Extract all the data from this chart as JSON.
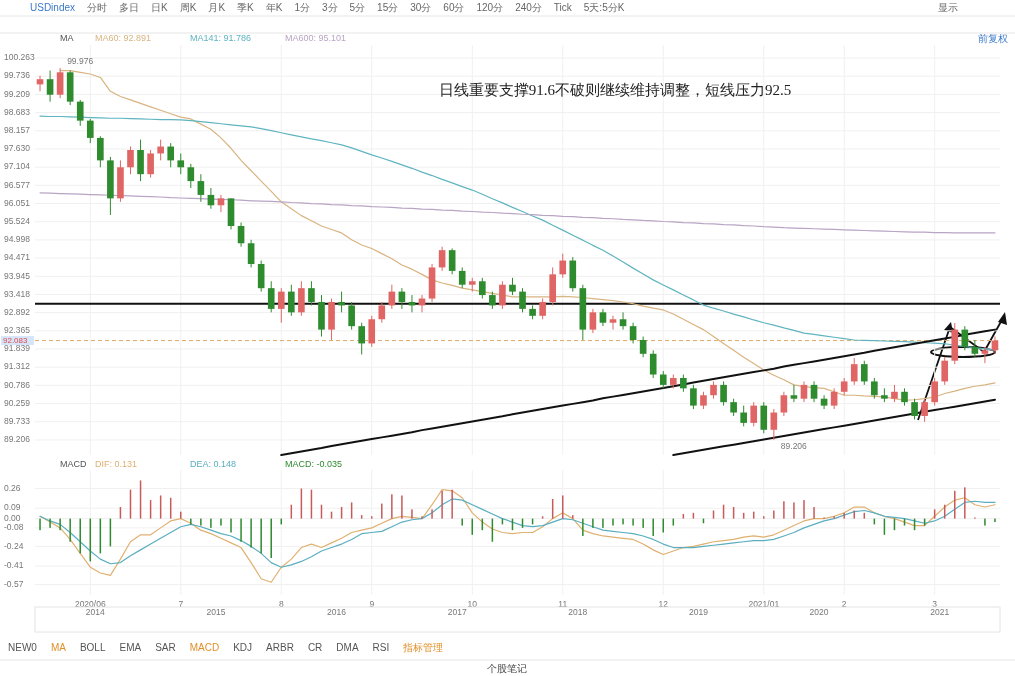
{
  "chart_data": [
    {
      "type": "candlestick",
      "categories": [
        null,
        null,
        null,
        null,
        null,
        "2020/06",
        null,
        null,
        null,
        null,
        null,
        null,
        null,
        null,
        "7",
        null,
        null,
        null,
        null,
        null,
        null,
        null,
        null,
        null,
        "8",
        null,
        null,
        null,
        null,
        null,
        null,
        null,
        null,
        "9",
        null,
        null,
        null,
        null,
        null,
        null,
        null,
        null,
        null,
        "10",
        null,
        null,
        null,
        null,
        null,
        null,
        null,
        null,
        "11",
        null,
        null,
        null,
        null,
        null,
        null,
        null,
        null,
        null,
        "12",
        null,
        null,
        null,
        null,
        null,
        null,
        null,
        null,
        null,
        "2021/01",
        null,
        null,
        null,
        null,
        null,
        null,
        null,
        "2",
        null,
        null,
        null,
        null,
        null,
        null,
        null,
        null,
        "3",
        null,
        null,
        null,
        null,
        null,
        null
      ],
      "ohlc": [
        [
          99.5,
          99.75,
          99.3,
          99.65
        ],
        [
          99.65,
          99.9,
          99.0,
          99.2
        ],
        [
          99.2,
          99.976,
          99.1,
          99.85
        ],
        [
          99.85,
          99.9,
          98.9,
          99.0
        ],
        [
          99.0,
          99.05,
          98.3,
          98.45
        ],
        [
          98.45,
          98.5,
          97.8,
          97.95
        ],
        [
          97.95,
          98.0,
          97.1,
          97.3
        ],
        [
          97.3,
          97.4,
          95.72,
          96.2
        ],
        [
          96.2,
          97.3,
          96.1,
          97.1
        ],
        [
          97.1,
          97.7,
          96.9,
          97.6
        ],
        [
          97.6,
          97.9,
          96.7,
          96.9
        ],
        [
          96.9,
          97.6,
          96.8,
          97.5
        ],
        [
          97.5,
          97.9,
          97.3,
          97.7
        ],
        [
          97.7,
          97.8,
          97.1,
          97.3
        ],
        [
          97.3,
          97.5,
          96.9,
          97.1
        ],
        [
          97.1,
          97.2,
          96.5,
          96.7
        ],
        [
          96.7,
          96.9,
          96.1,
          96.3
        ],
        [
          96.3,
          96.5,
          95.9,
          96.0
        ],
        [
          96.0,
          96.3,
          95.8,
          96.2
        ],
        [
          96.2,
          96.2,
          95.3,
          95.4
        ],
        [
          95.4,
          95.5,
          94.8,
          94.9
        ],
        [
          94.9,
          95.0,
          94.2,
          94.3
        ],
        [
          94.3,
          94.4,
          93.5,
          93.6
        ],
        [
          93.6,
          93.8,
          92.9,
          93.0
        ],
        [
          93.0,
          93.6,
          92.6,
          93.5
        ],
        [
          93.5,
          93.7,
          92.8,
          92.9
        ],
        [
          92.9,
          93.8,
          92.8,
          93.6
        ],
        [
          93.6,
          93.8,
          93.1,
          93.2
        ],
        [
          93.2,
          93.4,
          92.2,
          92.4
        ],
        [
          92.4,
          93.3,
          92.1,
          93.2
        ],
        [
          93.2,
          93.5,
          92.9,
          93.1
        ],
        [
          93.1,
          93.2,
          92.4,
          92.5
        ],
        [
          92.5,
          92.6,
          91.68,
          92.0
        ],
        [
          92.0,
          92.8,
          91.9,
          92.7
        ],
        [
          92.7,
          93.2,
          92.6,
          93.1
        ],
        [
          93.1,
          93.7,
          93.0,
          93.5
        ],
        [
          93.5,
          93.6,
          93.0,
          93.2
        ],
        [
          93.2,
          93.4,
          92.9,
          93.1
        ],
        [
          93.1,
          93.4,
          92.9,
          93.3
        ],
        [
          93.3,
          94.3,
          93.2,
          94.2
        ],
        [
          94.2,
          94.8,
          94.1,
          94.7
        ],
        [
          94.7,
          94.75,
          94.0,
          94.1
        ],
        [
          94.1,
          94.2,
          93.6,
          93.7
        ],
        [
          93.7,
          93.9,
          93.5,
          93.8
        ],
        [
          93.8,
          93.9,
          93.3,
          93.4
        ],
        [
          93.4,
          93.5,
          93.0,
          93.1
        ],
        [
          93.1,
          93.8,
          93.0,
          93.7
        ],
        [
          93.7,
          93.9,
          93.4,
          93.5
        ],
        [
          93.5,
          93.6,
          92.9,
          93.0
        ],
        [
          93.0,
          93.1,
          92.7,
          92.8
        ],
        [
          92.8,
          93.3,
          92.7,
          93.2
        ],
        [
          93.2,
          94.2,
          93.1,
          94.0
        ],
        [
          94.0,
          94.6,
          93.9,
          94.4
        ],
        [
          94.4,
          94.5,
          93.5,
          93.6
        ],
        [
          93.6,
          93.7,
          92.1,
          92.4
        ],
        [
          92.4,
          93.0,
          92.3,
          92.9
        ],
        [
          92.9,
          93.0,
          92.5,
          92.6
        ],
        [
          92.6,
          92.8,
          92.4,
          92.7
        ],
        [
          92.7,
          92.9,
          92.4,
          92.5
        ],
        [
          92.5,
          92.6,
          92.0,
          92.1
        ],
        [
          92.1,
          92.2,
          91.6,
          91.7
        ],
        [
          91.7,
          91.8,
          91.0,
          91.1
        ],
        [
          91.1,
          91.2,
          90.7,
          90.8
        ],
        [
          90.8,
          91.1,
          90.7,
          91.0
        ],
        [
          91.0,
          91.1,
          90.6,
          90.7
        ],
        [
          90.7,
          90.8,
          90.1,
          90.2
        ],
        [
          90.2,
          90.6,
          90.1,
          90.5
        ],
        [
          90.5,
          90.9,
          90.4,
          90.8
        ],
        [
          90.8,
          90.9,
          90.2,
          90.3
        ],
        [
          90.3,
          90.4,
          89.9,
          90.0
        ],
        [
          90.0,
          90.2,
          89.6,
          89.7
        ],
        [
          89.7,
          90.3,
          89.6,
          90.2
        ],
        [
          90.2,
          90.3,
          89.4,
          89.5
        ],
        [
          89.5,
          90.1,
          89.206,
          90.0
        ],
        [
          90.0,
          90.6,
          89.9,
          90.5
        ],
        [
          90.5,
          90.8,
          90.3,
          90.4
        ],
        [
          90.4,
          90.9,
          90.3,
          90.8
        ],
        [
          90.8,
          90.9,
          90.3,
          90.4
        ],
        [
          90.4,
          90.5,
          90.1,
          90.2
        ],
        [
          90.2,
          90.7,
          90.1,
          90.6
        ],
        [
          90.6,
          91.0,
          90.5,
          90.9
        ],
        [
          90.9,
          91.58,
          90.8,
          91.4
        ],
        [
          91.4,
          91.5,
          90.8,
          90.9
        ],
        [
          90.9,
          91.0,
          90.4,
          90.5
        ],
        [
          90.5,
          90.7,
          90.3,
          90.4
        ],
        [
          90.4,
          90.8,
          90.3,
          90.6
        ],
        [
          90.6,
          90.7,
          90.2,
          90.3
        ],
        [
          90.3,
          90.4,
          89.8,
          89.9
        ],
        [
          89.9,
          90.4,
          89.73,
          90.3
        ],
        [
          90.3,
          91.0,
          90.2,
          90.9
        ],
        [
          90.9,
          91.6,
          90.8,
          91.5
        ],
        [
          91.5,
          92.59,
          91.4,
          92.4
        ],
        [
          92.4,
          92.5,
          91.8,
          91.9
        ],
        [
          91.9,
          92.1,
          91.6,
          91.7
        ],
        [
          91.7,
          91.9,
          91.43,
          91.8
        ],
        [
          91.8,
          92.2,
          91.7,
          92.083
        ]
      ],
      "colors": [
        "#e06666",
        "#2e8b2e",
        "#e06666",
        "#2e8b2e",
        "#2e8b2e",
        "#2e8b2e",
        "#2e8b2e",
        "#2e8b2e",
        "#e06666",
        "#e06666",
        "#2e8b2e",
        "#e06666",
        "#e06666",
        "#2e8b2e",
        "#2e8b2e",
        "#2e8b2e",
        "#2e8b2e",
        "#2e8b2e",
        "#e06666",
        "#2e8b2e",
        "#2e8b2e",
        "#2e8b2e",
        "#2e8b2e",
        "#2e8b2e",
        "#e06666",
        "#2e8b2e",
        "#e06666",
        "#2e8b2e",
        "#2e8b2e",
        "#e06666",
        "#2e8b2e",
        "#2e8b2e",
        "#2e8b2e",
        "#e06666",
        "#e06666",
        "#e06666",
        "#2e8b2e",
        "#2e8b2e",
        "#e06666",
        "#e06666",
        "#e06666",
        "#2e8b2e",
        "#2e8b2e",
        "#e06666",
        "#2e8b2e",
        "#2e8b2e",
        "#e06666",
        "#2e8b2e",
        "#2e8b2e",
        "#2e8b2e",
        "#e06666",
        "#e06666",
        "#e06666",
        "#2e8b2e",
        "#2e8b2e",
        "#e06666",
        "#2e8b2e",
        "#e06666",
        "#2e8b2e",
        "#2e8b2e",
        "#2e8b2e",
        "#2e8b2e",
        "#2e8b2e",
        "#e06666",
        "#2e8b2e",
        "#2e8b2e",
        "#e06666",
        "#e06666",
        "#2e8b2e",
        "#2e8b2e",
        "#2e8b2e",
        "#e06666",
        "#2e8b2e",
        "#e06666",
        "#e06666",
        "#2e8b2e",
        "#e06666",
        "#2e8b2e",
        "#2e8b2e",
        "#e06666",
        "#e06666",
        "#e06666",
        "#2e8b2e",
        "#2e8b2e",
        "#2e8b2e",
        "#e06666",
        "#2e8b2e",
        "#2e8b2e",
        "#e06666",
        "#e06666",
        "#e06666",
        "#e06666",
        "#2e8b2e",
        "#2e8b2e",
        "#e06666",
        "#e06666"
      ],
      "series": [
        {
          "name": "MA60: 92.891",
          "type": "line",
          "color": "#d8b480",
          "values": [
            null,
            null,
            99.9,
            99.9,
            99.85,
            99.8,
            99.7,
            99.3,
            99.15,
            99.05,
            98.95,
            98.85,
            98.75,
            98.65,
            98.55,
            98.5,
            98.35,
            98.2,
            97.95,
            97.65,
            97.3,
            97.0,
            96.7,
            96.4,
            96.1,
            95.9,
            95.7,
            95.55,
            95.4,
            95.3,
            95.2,
            95.0,
            94.85,
            94.75,
            94.6,
            94.45,
            94.27,
            94.15,
            94.0,
            93.84,
            93.75,
            93.68,
            93.6,
            93.55,
            93.5,
            93.45,
            93.4,
            93.35,
            93.35,
            93.35,
            93.35,
            93.35,
            93.36,
            93.35,
            93.33,
            93.3,
            93.27,
            93.24,
            93.2,
            93.15,
            93.08,
            93.02,
            92.97,
            92.85,
            92.7,
            92.55,
            92.4,
            92.2,
            92.0,
            91.8,
            91.6,
            91.42,
            91.23,
            91.08,
            90.95,
            90.8,
            90.75,
            90.72,
            90.7,
            90.6,
            90.5,
            90.5,
            90.48,
            90.47,
            90.45,
            90.4,
            90.36,
            90.37,
            90.4,
            90.45,
            90.55,
            90.62,
            90.7,
            90.76,
            90.8,
            90.86
          ]
        },
        {
          "name": "MA141: 91.786",
          "type": "line",
          "color": "#5fb4c0",
          "values": [
            98.58,
            98.57,
            98.57,
            98.56,
            98.55,
            98.54,
            98.53,
            98.52,
            98.52,
            98.51,
            98.5,
            98.49,
            98.48,
            98.48,
            98.47,
            98.45,
            98.42,
            98.39,
            98.36,
            98.33,
            98.3,
            98.27,
            98.22,
            98.16,
            98.1,
            98.04,
            97.98,
            97.92,
            97.87,
            97.81,
            97.75,
            97.66,
            97.56,
            97.46,
            97.37,
            97.27,
            97.17,
            97.07,
            96.96,
            96.86,
            96.75,
            96.65,
            96.54,
            96.44,
            96.32,
            96.19,
            96.07,
            95.94,
            95.82,
            95.69,
            95.57,
            95.42,
            95.28,
            95.13,
            94.99,
            94.84,
            94.7,
            94.53,
            94.36,
            94.18,
            94.01,
            93.84,
            93.69,
            93.55,
            93.4,
            93.26,
            93.11,
            93.02,
            92.94,
            92.85,
            92.77,
            92.68,
            92.6,
            92.53,
            92.45,
            92.38,
            92.3,
            92.26,
            92.22,
            92.18,
            92.14,
            92.1,
            92.09,
            92.08,
            92.07,
            92.06,
            92.05,
            92.04,
            92.02,
            92.01,
            91.99,
            91.95,
            91.91,
            91.88,
            91.84,
            91.8
          ]
        },
        {
          "name": "MA600: 95.101",
          "type": "line",
          "color": "#b8a4c4",
          "values": [
            96.36,
            96.35,
            96.34,
            96.33,
            96.32,
            96.31,
            96.3,
            96.29,
            96.28,
            96.27,
            96.26,
            96.25,
            96.24,
            96.22,
            96.21,
            96.2,
            96.19,
            96.18,
            96.17,
            96.16,
            96.15,
            96.13,
            96.12,
            96.11,
            96.1,
            96.08,
            96.07,
            96.05,
            96.04,
            96.02,
            96.01,
            95.99,
            95.98,
            95.96,
            95.95,
            95.94,
            95.92,
            95.91,
            95.89,
            95.88,
            95.86,
            95.85,
            95.83,
            95.82,
            95.8,
            95.79,
            95.77,
            95.76,
            95.74,
            95.73,
            95.71,
            95.7,
            95.68,
            95.67,
            95.65,
            95.64,
            95.62,
            95.61,
            95.59,
            95.58,
            95.56,
            95.55,
            95.53,
            95.52,
            95.5,
            95.49,
            95.47,
            95.46,
            95.44,
            95.43,
            95.41,
            95.4,
            95.38,
            95.37,
            95.35,
            95.34,
            95.33,
            95.32,
            95.31,
            95.3,
            95.29,
            95.28,
            95.27,
            95.26,
            95.25,
            95.24,
            95.23,
            95.22,
            95.22,
            95.21,
            95.21,
            95.2,
            95.2,
            95.2,
            95.2,
            95.2
          ]
        },
        {
          "type": "line",
          "color": "#111111",
          "line_style": "solid",
          "values": [
            null,
            null,
            null,
            null,
            null,
            null,
            null,
            null,
            null,
            null,
            null,
            null,
            null,
            null,
            null,
            null,
            null,
            null,
            null,
            null,
            null,
            null,
            null,
            null,
            88.77,
            88.82,
            88.87,
            88.92,
            88.97,
            89.03,
            89.08,
            89.13,
            89.18,
            89.23,
            89.28,
            89.33,
            89.38,
            89.43,
            89.49,
            89.54,
            89.59,
            89.64,
            89.69,
            89.74,
            89.79,
            89.84,
            89.89,
            89.95,
            90.0,
            90.05,
            90.1,
            90.15,
            90.2,
            90.25,
            90.3,
            90.35,
            90.41,
            90.46,
            90.51,
            90.56,
            90.61,
            90.66,
            90.71,
            90.76,
            90.81,
            90.87,
            90.92,
            90.97,
            91.02,
            91.07,
            91.12,
            91.17,
            91.22,
            91.27,
            91.33,
            91.38,
            91.43,
            91.48,
            91.53,
            91.58,
            91.63,
            91.68,
            91.73,
            91.79,
            91.84,
            91.89,
            91.94,
            91.99,
            92.04,
            92.09,
            92.14,
            92.19,
            92.25,
            92.3,
            92.35,
            92.4
          ]
        },
        {
          "type": "line",
          "color": "#111111",
          "line_style": "solid",
          "values": [
            null,
            null,
            null,
            null,
            null,
            null,
            null,
            null,
            null,
            null,
            null,
            null,
            null,
            null,
            null,
            null,
            null,
            null,
            null,
            null,
            null,
            null,
            null,
            null,
            null,
            null,
            null,
            null,
            null,
            null,
            null,
            null,
            null,
            null,
            null,
            null,
            null,
            null,
            null,
            null,
            null,
            null,
            null,
            null,
            null,
            null,
            null,
            null,
            null,
            null,
            null,
            null,
            null,
            null,
            null,
            null,
            null,
            null,
            null,
            null,
            null,
            null,
            null,
            88.77,
            88.82,
            88.87,
            88.92,
            88.97,
            89.02,
            89.07,
            89.12,
            89.17,
            89.22,
            89.27,
            89.32,
            89.37,
            89.42,
            89.47,
            89.52,
            89.57,
            89.62,
            89.67,
            89.72,
            89.77,
            89.82,
            89.87,
            89.92,
            89.97,
            90.02,
            90.07,
            90.12,
            90.17,
            90.22,
            90.27,
            90.32,
            90.37
          ]
        }
      ],
      "ylim": [
        88.77,
        100.64
      ],
      "yticks": [
        89.206,
        89.733,
        90.259,
        90.786,
        91.312,
        91.839,
        92.365,
        92.892,
        93.418,
        93.945,
        94.471,
        94.998,
        95.524,
        96.051,
        96.577,
        97.104,
        {
          "value": 97.63,
          "label": "97.630"
        },
        98.157,
        98.683,
        99.209,
        99.736,
        100.263
      ],
      "tick_labels": "y",
      "grid": true,
      "legend": "top left",
      "ref_lines": [
        {
          "axis": "y",
          "value": 93.15,
          "color": "#111111",
          "line_style": "solid"
        },
        {
          "axis": "y",
          "value": 92.083,
          "label": "92.083",
          "color": "#e0a868",
          "line_style": "dashed"
        }
      ],
      "annotations": [
        "MA",
        "日线重要支撑91.6不破则继续维持调整，短线压力92.5",
        {
          "text": "99.976",
          "y": 99.976
        },
        {
          "text": "89.206",
          "y": 89.206
        },
        "前复权",
        "USDindex",
        "分时",
        "多日",
        "日K",
        "周K",
        "月K",
        "季K",
        "年K",
        "1分",
        "3分",
        "5分",
        "15分",
        "30分",
        "60分",
        "120分",
        "240分",
        "Tick",
        "5天:5分K",
        "显示"
      ]
    },
    {
      "type": "bar",
      "categories": [
        null,
        null,
        null,
        null,
        null,
        "2020/06",
        null,
        null,
        null,
        null,
        null,
        null,
        null,
        null,
        "7",
        null,
        null,
        null,
        null,
        null,
        null,
        null,
        null,
        null,
        "8",
        null,
        null,
        null,
        null,
        null,
        null,
        null,
        null,
        "9",
        null,
        null,
        null,
        null,
        null,
        null,
        null,
        null,
        null,
        "10",
        null,
        null,
        null,
        null,
        null,
        null,
        null,
        null,
        "11",
        null,
        null,
        null,
        null,
        null,
        null,
        null,
        null,
        null,
        "12",
        null,
        null,
        null,
        null,
        null,
        null,
        null,
        null,
        null,
        "2021/01",
        null,
        null,
        null,
        null,
        null,
        null,
        null,
        "2",
        null,
        null,
        null,
        null,
        null,
        null,
        null,
        null,
        "3",
        null,
        null,
        null,
        null,
        null,
        null
      ],
      "series": [
        {
          "name": "DIF: 0.131",
          "type": "line",
          "color": "#e0b070",
          "values": [
            0.02,
            -0.03,
            -0.08,
            -0.18,
            -0.3,
            -0.42,
            -0.47,
            -0.49,
            -0.35,
            -0.2,
            -0.14,
            -0.14,
            -0.08,
            -0.02,
            0.0,
            -0.04,
            -0.1,
            -0.13,
            -0.17,
            -0.21,
            -0.25,
            -0.38,
            -0.52,
            -0.55,
            -0.42,
            -0.35,
            -0.25,
            -0.22,
            -0.25,
            -0.21,
            -0.17,
            -0.12,
            -0.1,
            -0.08,
            -0.04,
            0.0,
            0.02,
            0.01,
            0.0,
            0.12,
            0.25,
            0.24,
            0.18,
            0.05,
            -0.03,
            -0.09,
            -0.12,
            -0.13,
            -0.12,
            -0.12,
            -0.07,
            0.0,
            0.05,
            0.0,
            -0.1,
            -0.13,
            -0.15,
            -0.16,
            -0.17,
            -0.18,
            -0.22,
            -0.27,
            -0.31,
            -0.28,
            -0.25,
            -0.24,
            -0.22,
            -0.2,
            -0.19,
            -0.18,
            -0.16,
            -0.15,
            -0.16,
            -0.14,
            -0.1,
            -0.06,
            -0.02,
            0.0,
            0.0,
            0.02,
            0.05,
            0.1,
            0.1,
            0.05,
            0.02,
            0.0,
            -0.03,
            -0.06,
            -0.06,
            0.02,
            0.1,
            0.16,
            0.18,
            0.12,
            0.1,
            0.12
          ]
        },
        {
          "name": "DEA: 0.148",
          "type": "line",
          "color": "#5aaec0",
          "values": [
            0.02,
            -0.02,
            -0.05,
            -0.12,
            -0.2,
            -0.28,
            -0.35,
            -0.39,
            -0.38,
            -0.32,
            -0.27,
            -0.22,
            -0.17,
            -0.12,
            -0.07,
            -0.05,
            -0.07,
            -0.1,
            -0.13,
            -0.15,
            -0.19,
            -0.24,
            -0.3,
            -0.38,
            -0.42,
            -0.4,
            -0.37,
            -0.33,
            -0.28,
            -0.25,
            -0.22,
            -0.18,
            -0.13,
            -0.12,
            -0.11,
            -0.07,
            -0.03,
            -0.01,
            0.0,
            0.05,
            0.12,
            0.17,
            0.16,
            0.12,
            0.08,
            0.04,
            0.0,
            -0.03,
            -0.06,
            -0.07,
            -0.06,
            -0.03,
            0.0,
            -0.01,
            -0.04,
            -0.07,
            -0.1,
            -0.11,
            -0.12,
            -0.13,
            -0.15,
            -0.18,
            -0.22,
            -0.25,
            -0.25,
            -0.25,
            -0.24,
            -0.23,
            -0.22,
            -0.21,
            -0.2,
            -0.19,
            -0.19,
            -0.18,
            -0.15,
            -0.12,
            -0.08,
            -0.05,
            -0.02,
            0.0,
            0.03,
            0.06,
            0.07,
            0.05,
            0.02,
            0.01,
            0.0,
            -0.02,
            -0.04,
            -0.02,
            0.02,
            0.08,
            0.14,
            0.15,
            0.14,
            0.14
          ]
        },
        {
          "name": "MACD: -0.035",
          "type": "bar",
          "values": [
            -0.1,
            -0.08,
            -0.1,
            -0.2,
            -0.3,
            -0.37,
            -0.3,
            -0.24,
            0.1,
            0.25,
            0.33,
            0.16,
            0.2,
            0.18,
            0.06,
            -0.05,
            -0.06,
            -0.08,
            -0.06,
            -0.12,
            -0.2,
            -0.25,
            -0.3,
            -0.34,
            -0.05,
            0.12,
            0.26,
            0.25,
            0.12,
            0.06,
            0.1,
            0.14,
            0.03,
            0.02,
            0.13,
            0.21,
            0.2,
            0.08,
            0.02,
            0.08,
            0.24,
            0.25,
            -0.06,
            -0.14,
            -0.1,
            -0.2,
            -0.05,
            -0.1,
            -0.08,
            -0.05,
            0.02,
            0.17,
            0.2,
            0.03,
            -0.15,
            -0.08,
            -0.08,
            -0.06,
            -0.05,
            -0.06,
            -0.08,
            -0.15,
            -0.12,
            -0.06,
            0.04,
            0.05,
            -0.04,
            0.07,
            0.12,
            0.1,
            0.05,
            0.06,
            0.02,
            0.07,
            0.15,
            0.14,
            0.16,
            0.1,
            0.01,
            0.02,
            0.05,
            0.07,
            0.05,
            -0.05,
            -0.14,
            -0.1,
            -0.06,
            -0.1,
            -0.06,
            0.08,
            0.12,
            0.24,
            0.27,
            0.01,
            -0.06,
            -0.03
          ],
          "colors": [
            "#2e8b2e",
            "#2e8b2e",
            "#2e8b2e",
            "#2e8b2e",
            "#2e8b2e",
            "#2e8b2e",
            "#2e8b2e",
            "#2e8b2e",
            "#c85a5a",
            "#c85a5a",
            "#c85a5a",
            "#c85a5a",
            "#c85a5a",
            "#c85a5a",
            "#c85a5a",
            "#2e8b2e",
            "#2e8b2e",
            "#2e8b2e",
            "#2e8b2e",
            "#2e8b2e",
            "#2e8b2e",
            "#2e8b2e",
            "#2e8b2e",
            "#2e8b2e",
            "#2e8b2e",
            "#c85a5a",
            "#c85a5a",
            "#c85a5a",
            "#c85a5a",
            "#c85a5a",
            "#c85a5a",
            "#c85a5a",
            "#c85a5a",
            "#c85a5a",
            "#c85a5a",
            "#c85a5a",
            "#c85a5a",
            "#c85a5a",
            "#c85a5a",
            "#c85a5a",
            "#c85a5a",
            "#c85a5a",
            "#2e8b2e",
            "#2e8b2e",
            "#2e8b2e",
            "#2e8b2e",
            "#2e8b2e",
            "#2e8b2e",
            "#2e8b2e",
            "#2e8b2e",
            "#c85a5a",
            "#c85a5a",
            "#c85a5a",
            "#c85a5a",
            "#2e8b2e",
            "#2e8b2e",
            "#2e8b2e",
            "#2e8b2e",
            "#2e8b2e",
            "#2e8b2e",
            "#2e8b2e",
            "#2e8b2e",
            "#2e8b2e",
            "#2e8b2e",
            "#c85a5a",
            "#c85a5a",
            "#2e8b2e",
            "#c85a5a",
            "#c85a5a",
            "#c85a5a",
            "#c85a5a",
            "#c85a5a",
            "#c85a5a",
            "#c85a5a",
            "#c85a5a",
            "#c85a5a",
            "#c85a5a",
            "#c85a5a",
            "#c85a5a",
            "#c85a5a",
            "#c85a5a",
            "#c85a5a",
            "#c85a5a",
            "#2e8b2e",
            "#2e8b2e",
            "#2e8b2e",
            "#2e8b2e",
            "#2e8b2e",
            "#2e8b2e",
            "#c85a5a",
            "#c85a5a",
            "#c85a5a",
            "#c85a5a",
            "#c85a5a",
            "#2e8b2e",
            "#2e8b2e"
          ]
        }
      ],
      "ylim": [
        -0.66,
        0.42
      ],
      "yticks": [
        -0.57,
        -0.41,
        -0.24,
        -0.08,
        {
          "value": 0,
          "label": "0.00"
        },
        0.09,
        0.26
      ],
      "grid": true,
      "legend": "top left",
      "annotations": [
        "MACD",
        "2014",
        "2015",
        "2016",
        "2017",
        "2018",
        "2019",
        "2020",
        "2021",
        "NEW0",
        "MA",
        "BOLL",
        "EMA",
        "SAR",
        "MACD",
        "KDJ",
        "ARBR",
        "CR",
        "DMA",
        "RSI",
        "指标管理",
        "个股笔记"
      ]
    }
  ]
}
